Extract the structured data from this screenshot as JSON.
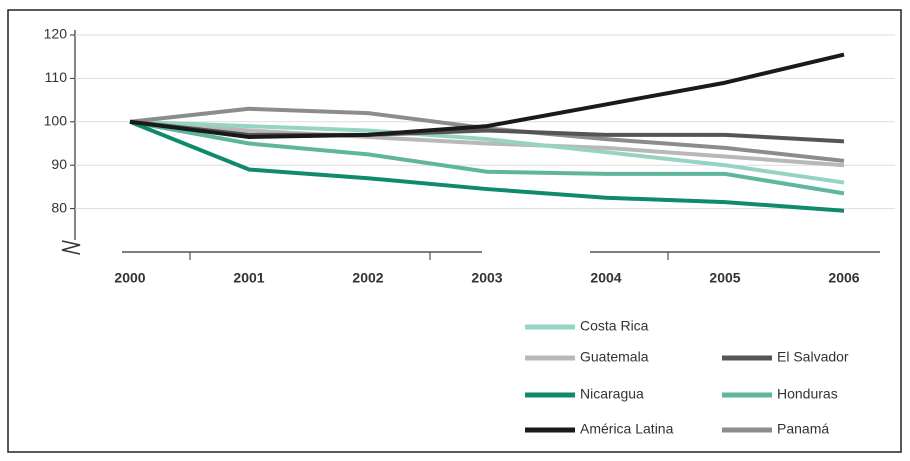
{
  "chart_data": {
    "type": "line",
    "categories": [
      "2000",
      "2001",
      "2002",
      "2003",
      "2004",
      "2005",
      "2006"
    ],
    "series": [
      {
        "name": "Costa Rica",
        "color": "#95d3c4",
        "values": [
          100,
          99,
          98,
          96,
          93,
          90,
          86
        ]
      },
      {
        "name": "Guatemala",
        "color": "#b8b8b8",
        "values": [
          100,
          98,
          96.5,
          95,
          94,
          92,
          90
        ]
      },
      {
        "name": "Nicaragua",
        "color": "#0f8a6d",
        "values": [
          100,
          89,
          87,
          84.5,
          82.5,
          81.5,
          79.5
        ]
      },
      {
        "name": "América Latina",
        "color": "#1a1a1a",
        "values": [
          100,
          96.5,
          97,
          99,
          104,
          109,
          115.5
        ]
      },
      {
        "name": "El Salvador",
        "color": "#555555",
        "values": [
          100,
          97,
          97,
          98,
          97,
          97,
          95.5
        ]
      },
      {
        "name": "Honduras",
        "color": "#5fb59e",
        "values": [
          100,
          95,
          92.5,
          88.5,
          88,
          88,
          83.5
        ]
      },
      {
        "name": "Panamá",
        "color": "#8c8c8c",
        "values": [
          100,
          103,
          102,
          98.5,
          96,
          94,
          91
        ]
      }
    ],
    "ylim": [
      70,
      120
    ],
    "yticks": [
      80,
      90,
      100,
      110,
      120
    ],
    "grid": true
  }
}
